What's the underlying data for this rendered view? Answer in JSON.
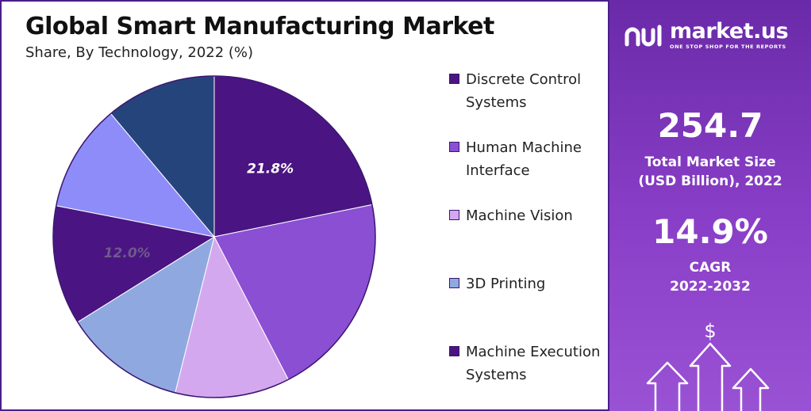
{
  "chart_data": {
    "type": "pie",
    "title": "Global Smart Manufacturing Market",
    "subtitle": "Share, By Technology, 2022 (%)",
    "slices": [
      {
        "label": "Discrete Control Systems",
        "value": 21.8,
        "color": "#4a1582",
        "data_label": "21.8%"
      },
      {
        "label": "Human Machine Interface",
        "value": 20.6,
        "color": "#8b4fd3",
        "data_label": ""
      },
      {
        "label": "Machine Vision",
        "value": 11.5,
        "color": "#d4a8ef",
        "data_label": ""
      },
      {
        "label": "3D Printing",
        "value": 12.2,
        "color": "#8fa9e0",
        "data_label": ""
      },
      {
        "label": "Machine Execution Systems",
        "value": 12.0,
        "color": "#4a1582",
        "data_label": "12.0%"
      },
      {
        "label": "",
        "value": 10.8,
        "color": "#8e8cf8",
        "data_label": ""
      },
      {
        "label": "",
        "value": 11.1,
        "color": "#26447c",
        "data_label": ""
      }
    ],
    "legend_position": "right"
  },
  "legend": [
    {
      "label": "Discrete Control Systems",
      "color": "#4a1582"
    },
    {
      "label": "Human Machine Interface",
      "color": "#8b4fd3"
    },
    {
      "label": "Machine Vision",
      "color": "#d4a8ef"
    },
    {
      "label": "3D Printing",
      "color": "#8fa9e0"
    },
    {
      "label": "Machine Execution Systems",
      "color": "#4a1582"
    }
  ],
  "sidebar": {
    "brand_name": "market.us",
    "brand_tagline": "ONE STOP SHOP FOR THE REPORTS",
    "market_size_value": "254.7",
    "market_size_label_1": "Total Market Size",
    "market_size_label_2": "(USD Billion), 2022",
    "cagr_value": "14.9%",
    "cagr_label_1": "CAGR",
    "cagr_label_2": "2022-2032",
    "dollar_symbol": "$"
  }
}
